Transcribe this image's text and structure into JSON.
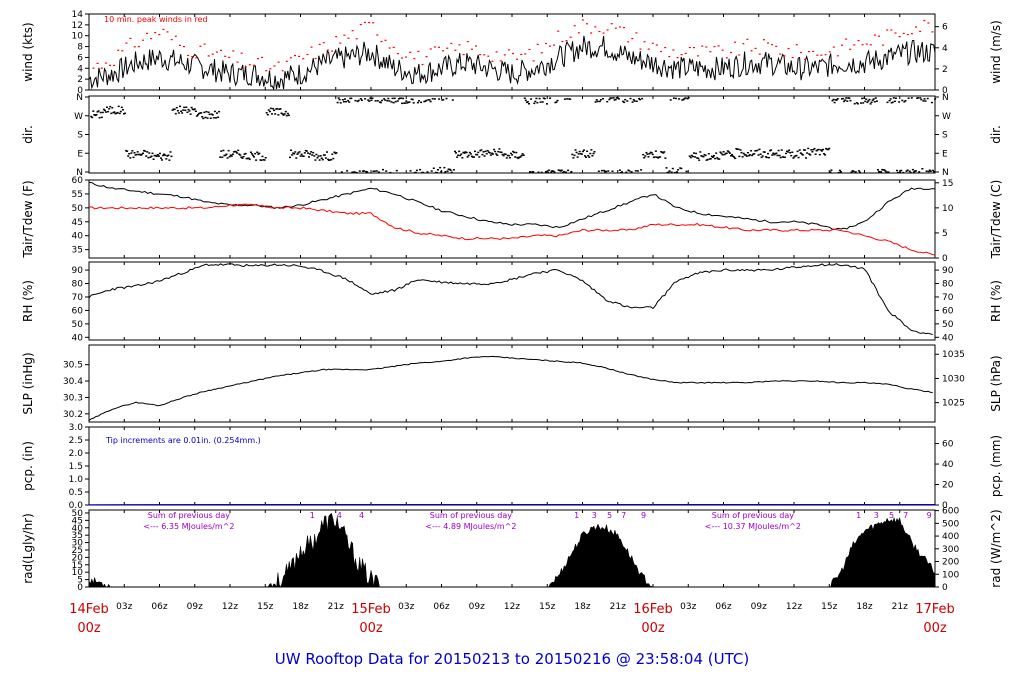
{
  "page": {
    "footer_title": "UW Rooftop Data for 20150213  to  20150216 @ 23:58:04  (UTC)"
  },
  "colors": {
    "primary": "#000000",
    "tdew": "#ff0000",
    "precip": "#0000cc",
    "annotation": "#9900cc",
    "date_label": "#cc0000",
    "footer": "#0000cc"
  },
  "time_axis": {
    "tick_labels": [
      "03z",
      "06z",
      "09z",
      "12z",
      "15z",
      "18z",
      "21z",
      "03z",
      "06z",
      "09z",
      "12z",
      "15z",
      "18z",
      "21z",
      "03z",
      "06z",
      "09z",
      "12z",
      "15z",
      "18z",
      "21z"
    ],
    "tick_hours": [
      3,
      6,
      9,
      12,
      15,
      18,
      21,
      27,
      30,
      33,
      36,
      39,
      42,
      45,
      51,
      54,
      57,
      60,
      63,
      66,
      69
    ],
    "date_labels": [
      {
        "hour": 0,
        "date": "14Feb",
        "time": "00z"
      },
      {
        "hour": 24,
        "date": "15Feb",
        "time": "00z"
      },
      {
        "hour": 48,
        "date": "16Feb",
        "time": "00z"
      },
      {
        "hour": 72,
        "date": "17Feb",
        "time": "00z"
      }
    ],
    "range_hours": [
      0,
      72
    ]
  },
  "chart_data": [
    {
      "type": "line",
      "id": "wind",
      "ylabel_left": "wind (kts)",
      "ylabel_right": "wind (m/s)",
      "annotation": "10 min. peak winds in red",
      "ylim": [
        0,
        14
      ],
      "yticks_left": [
        0,
        2,
        4,
        6,
        8,
        10,
        12,
        14
      ],
      "yticks_right": [
        0,
        2,
        4,
        6
      ],
      "x_hours": [
        0,
        2,
        4,
        6,
        8,
        10,
        12,
        14,
        16,
        18,
        20,
        22,
        24,
        26,
        28,
        30,
        32,
        34,
        36,
        38,
        40,
        42,
        44,
        46,
        48,
        50,
        52,
        54,
        56,
        58,
        60,
        62,
        64,
        66,
        68,
        70,
        72
      ],
      "series": [
        {
          "name": "wind",
          "values": [
            2,
            3,
            5,
            6,
            5,
            4,
            3,
            3,
            2,
            3,
            5,
            6,
            7,
            4,
            3,
            4,
            5,
            4,
            3,
            4,
            6,
            8,
            8,
            6,
            5,
            4,
            4,
            4,
            5,
            5,
            4,
            4,
            5,
            5,
            6,
            7,
            7
          ]
        },
        {
          "name": "peak",
          "values": [
            4,
            6,
            9,
            11,
            8,
            7,
            6,
            5,
            4,
            6,
            8,
            10,
            12,
            8,
            6,
            7,
            8,
            7,
            6,
            7,
            10,
            12,
            12,
            10,
            8,
            7,
            7,
            7,
            8,
            8,
            7,
            7,
            8,
            9,
            10,
            12,
            12
          ]
        }
      ]
    },
    {
      "type": "scatter",
      "id": "dir",
      "ylabel_left": "dir.",
      "ylabel_right": "dir.",
      "yticks_left": [
        "N",
        "E",
        "S",
        "W",
        "N"
      ],
      "yticks_right": [
        "N",
        "E",
        "S",
        "W",
        "N"
      ],
      "x_hours": [
        0,
        2,
        4,
        6,
        8,
        10,
        12,
        14,
        16,
        18,
        20,
        22,
        24,
        26,
        28,
        30,
        32,
        34,
        36,
        38,
        40,
        42,
        44,
        46,
        48,
        50,
        52,
        54,
        56,
        58,
        60,
        62,
        64,
        66,
        68,
        70,
        72
      ],
      "values_deg": [
        280,
        300,
        90,
        80,
        300,
        280,
        90,
        80,
        290,
        90,
        80,
        350,
        355,
        350,
        355,
        5,
        90,
        95,
        85,
        350,
        355,
        90,
        0,
        355,
        90,
        5,
        80,
        85,
        95,
        90,
        90,
        100,
        355,
        350,
        355,
        0,
        355
      ]
    },
    {
      "type": "line",
      "id": "temp",
      "ylabel_left": "Tair/Tdew (F)",
      "ylabel_right": "Tair/Tdew (C)",
      "ylim": [
        32,
        60
      ],
      "yticks_left": [
        35,
        40,
        45,
        50,
        55,
        60
      ],
      "yticks_right": [
        0,
        5,
        10,
        15
      ],
      "x_hours": [
        0,
        2,
        4,
        6,
        8,
        10,
        12,
        14,
        16,
        18,
        20,
        22,
        24,
        26,
        28,
        30,
        32,
        34,
        36,
        38,
        40,
        42,
        44,
        46,
        48,
        50,
        52,
        54,
        56,
        58,
        60,
        62,
        64,
        66,
        68,
        70,
        72
      ],
      "series": [
        {
          "name": "Tair",
          "values": [
            59,
            57,
            56,
            55,
            54,
            52,
            51,
            51,
            50,
            51,
            53,
            55,
            57,
            55,
            52,
            49,
            47,
            45,
            44,
            44,
            43,
            46,
            49,
            52,
            55,
            50,
            48,
            47,
            46,
            45,
            45,
            44,
            42,
            45,
            52,
            57,
            57
          ]
        },
        {
          "name": "Tdew",
          "values": [
            50,
            50,
            50,
            50,
            50,
            50,
            51,
            51,
            50,
            50,
            49,
            48,
            48,
            43,
            41,
            40,
            39,
            39,
            39,
            40,
            40,
            42,
            42,
            42,
            44,
            44,
            44,
            43,
            42,
            42,
            42,
            42,
            42,
            40,
            38,
            35,
            33
          ]
        }
      ]
    },
    {
      "type": "line",
      "id": "rh",
      "ylabel_left": "RH (%)",
      "ylabel_right": "RH (%)",
      "ylim": [
        38,
        96
      ],
      "yticks_left": [
        40,
        50,
        60,
        70,
        80,
        90
      ],
      "yticks_right": [
        40,
        50,
        60,
        70,
        80,
        90
      ],
      "x_hours": [
        0,
        2,
        4,
        6,
        8,
        10,
        12,
        14,
        16,
        18,
        20,
        22,
        24,
        26,
        28,
        30,
        32,
        34,
        36,
        38,
        40,
        42,
        44,
        46,
        48,
        50,
        52,
        54,
        56,
        58,
        60,
        62,
        64,
        66,
        68,
        70,
        72
      ],
      "values": [
        70,
        76,
        78,
        82,
        88,
        94,
        94,
        93,
        94,
        93,
        89,
        83,
        72,
        75,
        83,
        81,
        80,
        80,
        83,
        88,
        90,
        82,
        68,
        62,
        62,
        82,
        88,
        90,
        90,
        90,
        92,
        94,
        94,
        91,
        60,
        45,
        42
      ]
    },
    {
      "type": "line",
      "id": "slp",
      "ylabel_left": "SLP (inHg)",
      "ylabel_right": "SLP (hPa)",
      "ylim": [
        30.15,
        30.62
      ],
      "yticks_left": [
        30.2,
        30.3,
        30.4,
        30.5
      ],
      "yticks_right": [
        1025,
        1030,
        1035
      ],
      "x_hours": [
        0,
        2,
        4,
        6,
        8,
        10,
        12,
        14,
        16,
        18,
        20,
        22,
        24,
        26,
        28,
        30,
        32,
        34,
        36,
        38,
        40,
        42,
        44,
        46,
        48,
        50,
        52,
        54,
        56,
        58,
        60,
        62,
        64,
        66,
        68,
        70,
        72
      ],
      "values": [
        30.16,
        30.23,
        30.27,
        30.25,
        30.3,
        30.34,
        30.37,
        30.4,
        30.43,
        30.45,
        30.47,
        30.47,
        30.47,
        30.49,
        30.51,
        30.52,
        30.54,
        30.55,
        30.54,
        30.53,
        30.52,
        30.51,
        30.48,
        30.44,
        30.41,
        30.39,
        30.39,
        30.39,
        30.39,
        30.4,
        30.4,
        30.4,
        30.39,
        30.39,
        30.38,
        30.35,
        30.33
      ]
    },
    {
      "type": "line",
      "id": "pcp",
      "ylabel_left": "pcp. (in)",
      "ylabel_right": "pcp. (mm)",
      "annotation": "Tip increments are 0.01in. (0.254mm.)",
      "ylim": [
        0,
        3
      ],
      "yticks_left": [
        0.0,
        0.5,
        1.0,
        1.5,
        2.0,
        2.5,
        3.0
      ],
      "yticks_right": [
        0,
        20,
        40,
        60
      ],
      "x_hours": [
        0,
        12,
        24,
        36,
        48,
        60,
        72
      ],
      "values": [
        0.01,
        0.02,
        0.02,
        0.02,
        0.02,
        0.02,
        0.02
      ]
    },
    {
      "type": "area",
      "id": "rad",
      "ylabel_left": "rad(Lgly/hr)",
      "ylabel_right": "rad (W/m^2)",
      "ylim": [
        0,
        52
      ],
      "yticks_left": [
        0,
        5,
        10,
        15,
        20,
        25,
        30,
        35,
        40,
        45,
        50
      ],
      "yticks_right": [
        0,
        100,
        200,
        300,
        400,
        500,
        600
      ],
      "x_hours": [
        0,
        1,
        2,
        15,
        16,
        17,
        18,
        19,
        20,
        21,
        22,
        23,
        24,
        25,
        39,
        40,
        41,
        42,
        43,
        44,
        45,
        46,
        47,
        48,
        63,
        64,
        65,
        66,
        67,
        68,
        69,
        70,
        71,
        72
      ],
      "values": [
        5,
        3,
        0,
        0,
        3,
        10,
        25,
        30,
        43,
        46,
        30,
        15,
        5,
        0,
        0,
        8,
        22,
        35,
        41,
        40,
        35,
        22,
        8,
        0,
        0,
        10,
        28,
        38,
        42,
        46,
        45,
        30,
        20,
        10
      ],
      "annotations": [
        {
          "text": "Sum of previous day",
          "value_text": "<--- 6.35 MJoules/m^2",
          "hour": 8.5
        },
        {
          "text": "Sum of previous day",
          "value_text": "<--- 4.89 MJoules/m^2",
          "hour": 32.5
        },
        {
          "text": "Sum of previous day",
          "value_text": "<--- 10.37 MJoules/m^2",
          "hour": 56.5
        }
      ],
      "marker_labels": [
        {
          "text": "1",
          "hour": 19.0
        },
        {
          "text": "4",
          "hour": 21.3
        },
        {
          "text": "4",
          "hour": 23.2
        },
        {
          "text": "1",
          "hour": 41.5
        },
        {
          "text": "3",
          "hour": 43.0
        },
        {
          "text": "5",
          "hour": 44.3
        },
        {
          "text": "7",
          "hour": 45.5
        },
        {
          "text": "9",
          "hour": 47.2
        },
        {
          "text": "1",
          "hour": 65.5
        },
        {
          "text": "3",
          "hour": 67.0
        },
        {
          "text": "5",
          "hour": 68.3
        },
        {
          "text": "7",
          "hour": 69.5
        },
        {
          "text": "9",
          "hour": 71.5
        }
      ]
    }
  ]
}
